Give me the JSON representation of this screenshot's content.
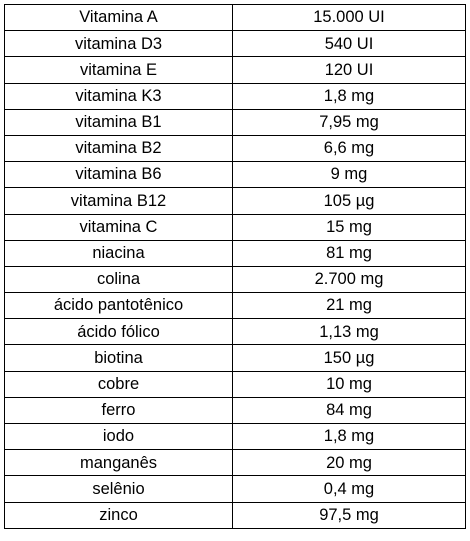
{
  "table": {
    "rows": [
      {
        "nutrient": "Vitamina A",
        "amount": "15.000 UI"
      },
      {
        "nutrient": "vitamina D3",
        "amount": "540 UI"
      },
      {
        "nutrient": "vitamina E",
        "amount": "120 UI"
      },
      {
        "nutrient": "vitamina K3",
        "amount": "1,8 mg"
      },
      {
        "nutrient": "vitamina B1",
        "amount": "7,95 mg"
      },
      {
        "nutrient": "vitamina B2",
        "amount": "6,6 mg"
      },
      {
        "nutrient": "vitamina B6",
        "amount": "9 mg"
      },
      {
        "nutrient": "vitamina B12",
        "amount": "105 µg"
      },
      {
        "nutrient": "vitamina C",
        "amount": "15 mg"
      },
      {
        "nutrient": "niacina",
        "amount": "81 mg"
      },
      {
        "nutrient": "colina",
        "amount": "2.700 mg"
      },
      {
        "nutrient": "ácido pantotênico",
        "amount": "21 mg"
      },
      {
        "nutrient": "ácido fólico",
        "amount": "1,13 mg"
      },
      {
        "nutrient": "biotina",
        "amount": "150 µg"
      },
      {
        "nutrient": "cobre",
        "amount": "10 mg"
      },
      {
        "nutrient": "ferro",
        "amount": "84 mg"
      },
      {
        "nutrient": "iodo",
        "amount": "1,8 mg"
      },
      {
        "nutrient": "manganês",
        "amount": "20 mg"
      },
      {
        "nutrient": "selênio",
        "amount": "0,4 mg"
      },
      {
        "nutrient": "zinco",
        "amount": "97,5 mg"
      }
    ]
  }
}
